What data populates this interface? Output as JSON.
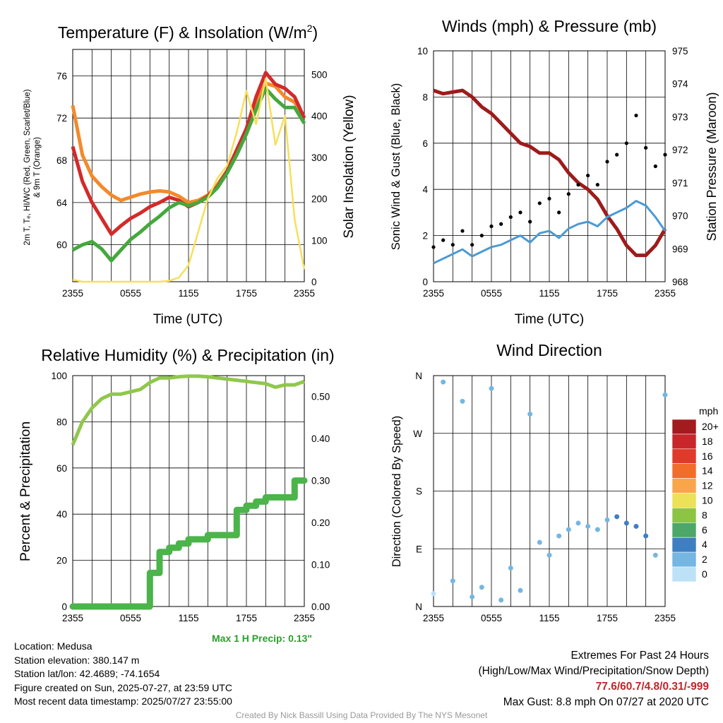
{
  "colors": {
    "t2m": "#d42a2a",
    "heat_index": "#44a83d",
    "t9m": "#f28a2c",
    "solar": "#f7df5a",
    "wind": "#4b9ad3",
    "gust": "#000000",
    "pressure": "#9e1b1b",
    "rh": "#90c84b",
    "precip": "#4bb44b",
    "precip_note": "#2e9e2e",
    "extremes": "#c0262b",
    "credit": "#999999"
  },
  "chart_data": [
    {
      "id": "temp",
      "type": "line",
      "title": "Temperature (F) & Insolation (W/m²)",
      "xlabel": "Time (UTC)",
      "ylabel": "2m T, Td, HI/WC (Red, Green, Scarlet/Blue) & 9m T (Orange)",
      "ylabel_line1": "2m T, Tₑ, HI/WC (Red, Green, Scarlet/Blue)",
      "ylabel_line2": "& 9m T (Orange)",
      "y2label": "Solar Insolation (Yellow)",
      "x_ticks": [
        "2355",
        "0555",
        "1155",
        "1755",
        "2355"
      ],
      "ylim": [
        56.5,
        78.5
      ],
      "y_ticks": [
        60,
        64,
        68,
        72,
        76
      ],
      "y2lim": [
        0,
        560
      ],
      "y2_ticks": [
        0,
        100,
        200,
        300,
        400,
        500
      ],
      "grid": true,
      "x_hours": [
        0,
        1,
        2,
        3,
        4,
        5,
        6,
        7,
        8,
        9,
        10,
        11,
        12,
        13,
        14,
        15,
        16,
        17,
        18,
        19,
        20,
        21,
        22,
        23,
        24
      ],
      "series": [
        {
          "key": "t9m",
          "axis": "left",
          "values": [
            73.2,
            68.5,
            66.5,
            65.5,
            64.7,
            64.2,
            64.5,
            64.8,
            65.0,
            65.1,
            65.0,
            64.6,
            64.0,
            64.2,
            64.7,
            65.7,
            67.0,
            68.8,
            71.0,
            73.2,
            75.3,
            75.0,
            74.0,
            73.5,
            72.0
          ]
        },
        {
          "key": "t2m",
          "axis": "left",
          "values": [
            69.3,
            66.0,
            64.0,
            62.5,
            61.0,
            61.8,
            62.5,
            63.0,
            63.6,
            64.0,
            64.5,
            64.2,
            63.6,
            64.0,
            64.6,
            65.5,
            67.0,
            69.0,
            71.0,
            74.0,
            76.3,
            75.2,
            74.8,
            74.0,
            72.0
          ]
        },
        {
          "key": "td2m",
          "axis": "left",
          "values": [
            59.5,
            60.0,
            60.3,
            59.6,
            58.5,
            59.5,
            60.5,
            61.2,
            62.0,
            62.7,
            63.5,
            64.0,
            63.7,
            64.0,
            64.5,
            65.4,
            66.8,
            68.5,
            70.5,
            72.8,
            74.8,
            73.8,
            73.0,
            73.0,
            71.5
          ]
        },
        {
          "key": "solar",
          "axis": "right",
          "values": [
            5,
            0,
            0,
            0,
            0,
            0,
            0,
            0,
            0,
            0,
            2,
            10,
            40,
            120,
            200,
            250,
            280,
            360,
            460,
            380,
            490,
            330,
            400,
            150,
            30
          ]
        }
      ]
    },
    {
      "id": "winds",
      "type": "line",
      "title": "Winds (mph) & Pressure (mb)",
      "xlabel": "Time (UTC)",
      "ylabel": "Sonic Wind & Gust (Blue, Black)",
      "y2label": "Station Pressure (Maroon)",
      "x_ticks": [
        "2355",
        "0555",
        "1155",
        "1755",
        "2355"
      ],
      "ylim": [
        0,
        10
      ],
      "y_ticks": [
        0,
        2,
        4,
        6,
        8,
        10
      ],
      "y2lim": [
        968,
        975
      ],
      "y2_ticks": [
        968,
        969,
        970,
        971,
        972,
        973,
        974,
        975
      ],
      "grid": true,
      "x_hours": [
        0,
        1,
        2,
        3,
        4,
        5,
        6,
        7,
        8,
        9,
        10,
        11,
        12,
        13,
        14,
        15,
        16,
        17,
        18,
        19,
        20,
        21,
        22,
        23,
        24
      ],
      "series": [
        {
          "key": "pressure",
          "axis": "right",
          "values": [
            973.8,
            973.7,
            973.75,
            973.8,
            973.6,
            973.3,
            973.1,
            972.8,
            972.5,
            972.2,
            972.1,
            971.9,
            971.9,
            971.7,
            971.3,
            971.0,
            970.8,
            970.5,
            970.0,
            969.6,
            969.1,
            968.8,
            968.8,
            969.1,
            969.6
          ]
        },
        {
          "key": "wind",
          "axis": "left",
          "values": [
            0.8,
            1.0,
            1.2,
            1.4,
            1.1,
            1.3,
            1.5,
            1.6,
            1.8,
            2.0,
            1.7,
            2.1,
            2.2,
            1.9,
            2.3,
            2.5,
            2.6,
            2.4,
            2.8,
            3.0,
            3.2,
            3.5,
            3.3,
            2.8,
            2.2
          ]
        },
        {
          "key": "gust",
          "axis": "left",
          "type": "scatter",
          "values": [
            1.5,
            1.8,
            1.6,
            2.2,
            1.6,
            2.0,
            2.4,
            2.5,
            2.8,
            3.0,
            2.6,
            3.4,
            3.6,
            3.0,
            3.8,
            4.2,
            4.6,
            4.2,
            5.2,
            5.5,
            6.0,
            7.2,
            5.8,
            5.0,
            5.5
          ]
        }
      ]
    },
    {
      "id": "rh",
      "type": "line",
      "title": "Relative Humidity (%) & Precipitation (in)",
      "ylabel": "Percent & Precipitation",
      "x_ticks": [
        "2355",
        "0555",
        "1155",
        "1755",
        "2355"
      ],
      "ylim": [
        0,
        100
      ],
      "y_ticks": [
        0,
        20,
        40,
        60,
        80,
        100
      ],
      "y2lim": [
        0,
        0.55
      ],
      "y2_ticks": [
        "0.00",
        "0.10",
        "0.20",
        "0.30",
        "0.40",
        "0.50"
      ],
      "grid": true,
      "x_hours": [
        0,
        1,
        2,
        3,
        4,
        5,
        6,
        7,
        8,
        9,
        10,
        11,
        12,
        13,
        14,
        15,
        16,
        17,
        18,
        19,
        20,
        21,
        22,
        23,
        24
      ],
      "series": [
        {
          "key": "rh",
          "axis": "left",
          "values": [
            70,
            80,
            86,
            90,
            92,
            92,
            93,
            94,
            97,
            99,
            99,
            99.5,
            99.8,
            99.8,
            99.5,
            99.0,
            98.5,
            98.0,
            97.5,
            97.0,
            96.5,
            95.0,
            96.0,
            96.0,
            97.5
          ]
        },
        {
          "key": "precip",
          "axis": "right",
          "type": "step",
          "values": [
            0,
            0,
            0,
            0,
            0,
            0,
            0,
            0,
            0.08,
            0.13,
            0.14,
            0.15,
            0.16,
            0.16,
            0.17,
            0.17,
            0.17,
            0.23,
            0.24,
            0.25,
            0.26,
            0.26,
            0.26,
            0.3,
            0.3
          ]
        }
      ],
      "annotation": "Max 1 H Precip: 0.13\""
    },
    {
      "id": "wdir",
      "type": "scatter",
      "title": "Wind Direction",
      "ylabel": "Direction (Colored By Speed)",
      "x_ticks": [
        "2355",
        "0555",
        "1155",
        "1755",
        "2355"
      ],
      "y_ticks": [
        "N",
        "E",
        "S",
        "W",
        "N"
      ],
      "ylim": [
        0,
        360
      ],
      "grid": true,
      "x_hours": [
        0,
        1,
        2,
        3,
        4,
        5,
        6,
        7,
        8,
        9,
        10,
        11,
        12,
        13,
        14,
        15,
        16,
        17,
        18,
        19,
        20,
        21,
        22,
        23,
        24
      ],
      "points_deg": [
        20,
        350,
        40,
        320,
        15,
        30,
        340,
        10,
        60,
        25,
        300,
        100,
        80,
        110,
        120,
        130,
        125,
        120,
        135,
        140,
        130,
        125,
        110,
        80,
        330
      ],
      "points_mph": [
        0.8,
        1.0,
        1.2,
        1.4,
        1.1,
        1.3,
        1.5,
        1.6,
        1.8,
        2.0,
        1.7,
        2.1,
        2.2,
        1.9,
        2.3,
        2.5,
        2.6,
        2.4,
        2.8,
        3.0,
        3.2,
        3.5,
        3.3,
        2.8,
        2.2
      ],
      "legend_title": "mph",
      "legend_labels": [
        "20+",
        "18",
        "16",
        "14",
        "12",
        "10",
        "8",
        "6",
        "4",
        "2",
        "0"
      ],
      "legend_colors": [
        "#a31b1f",
        "#c8262a",
        "#e03a2a",
        "#f06d2c",
        "#f9a64a",
        "#ece157",
        "#8cc543",
        "#4ca768",
        "#3d7fc1",
        "#75b6e2",
        "#bde1f6"
      ]
    }
  ],
  "info": {
    "location": "Location: Medusa",
    "elevation": "Station elevation: 380.147 m",
    "latlon": "Station lat/lon: 42.4689; -74.1654",
    "created": "Figure created on Sun, 2025-07-27, at 23:59 UTC",
    "recent": "Most recent data timestamp: 2025/07/27 23:55:00"
  },
  "extremes": {
    "title": "Extremes For Past 24 Hours",
    "subtitle": "(High/Low/Max Wind/Precipitation/Snow Depth)",
    "values": "77.6/60.7/4.8/0.31/-999",
    "max_gust": "Max Gust: 8.8 mph On 07/27 at 2020 UTC"
  },
  "credit": "Created By Nick Bassill Using Data Provided By The NYS Mesonet"
}
